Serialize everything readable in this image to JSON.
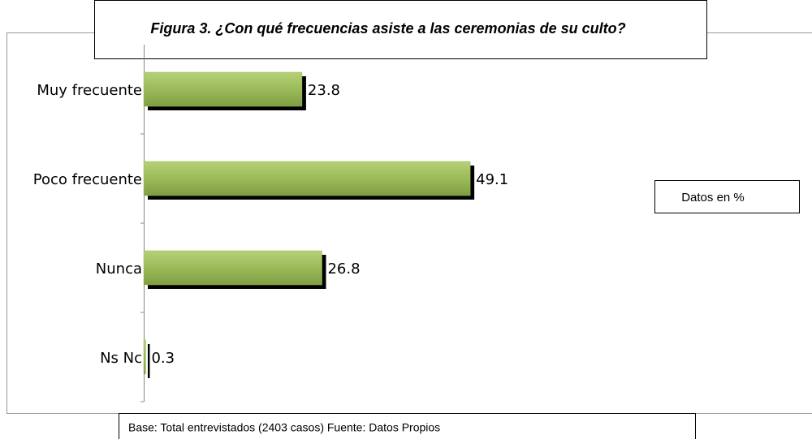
{
  "chart_data": {
    "type": "bar",
    "orientation": "horizontal",
    "title": "Figura 3. ¿Con qué frecuencias asiste a las ceremonias de su culto?",
    "categories": [
      "Muy frecuente",
      "Poco frecuente",
      "Nunca",
      "Ns Nc"
    ],
    "values": [
      23.8,
      49.1,
      26.8,
      0.3
    ],
    "color": "#9bbb59",
    "xlim": [
      0,
      100
    ],
    "annotation": "Datos en %",
    "footnote": "Base: Total entrevistados (2403 casos) Fuente: Datos Propios"
  }
}
